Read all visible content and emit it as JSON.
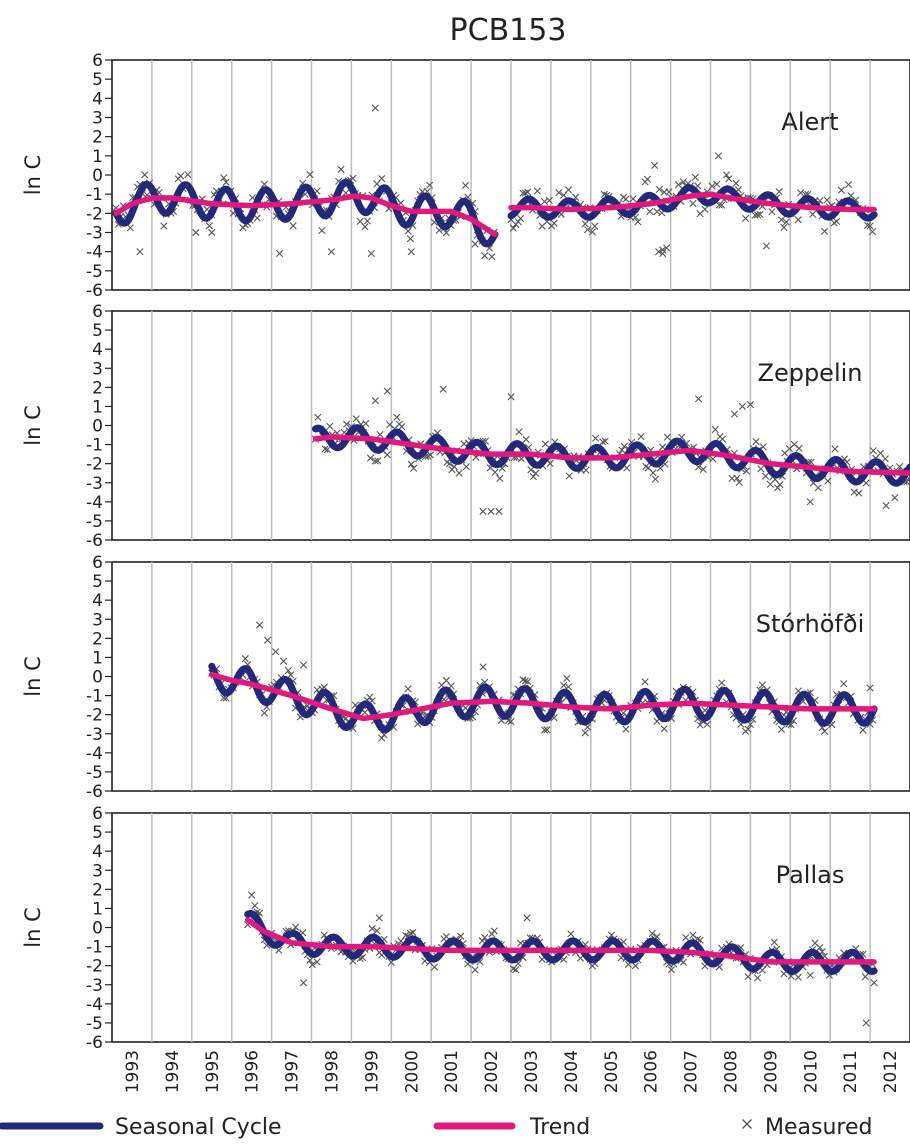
{
  "chart_data": {
    "type": "line",
    "title": "PCB153",
    "ylabel": "ln C",
    "ylim": [
      -6,
      6
    ],
    "yticks": [
      6,
      5,
      4,
      3,
      2,
      1,
      0,
      -1,
      -2,
      -3,
      -4,
      -5,
      -6
    ],
    "xlim": [
      1992.5,
      2012.5
    ],
    "xtick_labels": [
      "1993",
      "1994",
      "1995",
      "1996",
      "1997",
      "1998",
      "1999",
      "2000",
      "2001",
      "2002",
      "2003",
      "2004",
      "2005",
      "2006",
      "2007",
      "2008",
      "2009",
      "2010",
      "2011",
      "2012"
    ],
    "grid": "vertical",
    "legend": {
      "placement": "bottom",
      "entries": [
        {
          "label": "Seasonal Cycle",
          "color": "#22287a",
          "kind": "line"
        },
        {
          "label": "Trend",
          "color": "#e0197d",
          "kind": "line"
        },
        {
          "label": "Measured",
          "color": "#555555",
          "kind": "marker",
          "symbol": "×"
        }
      ]
    },
    "colors": {
      "seasonal": "#22287a",
      "trend": "#e0197d",
      "measured": "#555555",
      "grid": "#bdbdbd"
    },
    "panels": [
      {
        "station": "Alert",
        "segments": [
          {
            "trend": {
              "x": [
                1992.6,
                1993.0,
                1993.5,
                1994.0,
                1995.0,
                1996.0,
                1997.0,
                1998.0,
                1998.6,
                1999.0,
                1999.5,
                2000.0,
                2001.0,
                2001.5,
                2002.1
              ],
              "y": [
                -2.0,
                -1.5,
                -1.2,
                -1.2,
                -1.5,
                -1.6,
                -1.5,
                -1.3,
                -1.1,
                -1.2,
                -1.6,
                -1.9,
                -1.9,
                -2.3,
                -3.1
              ]
            },
            "seasonal": {
              "start": 1992.6,
              "end": 2002.1,
              "amp": 0.8,
              "period": 1.0,
              "phase": 0.9
            }
          },
          {
            "trend": {
              "x": [
                2002.5,
                2003.0,
                2004.0,
                2005.0,
                2006.0,
                2007.0,
                2007.5,
                2008.0,
                2009.0,
                2010.0,
                2011.0,
                2011.6
              ],
              "y": [
                -1.7,
                -1.7,
                -1.8,
                -1.7,
                -1.5,
                -1.1,
                -1.0,
                -1.2,
                -1.5,
                -1.7,
                -1.8,
                -1.8
              ]
            },
            "seasonal": {
              "start": 2002.5,
              "end": 2011.6,
              "amp": 0.45,
              "period": 1.0,
              "phase": 0.3
            }
          }
        ],
        "measured": {
          "spread": 0.9,
          "outliers": [
            [
              1999.1,
              3.5
            ],
            [
              1998.0,
              -4.0
            ],
            [
              1999.0,
              -4.1
            ],
            [
              2000.0,
              -4.0
            ],
            [
              2001.6,
              -3.6
            ],
            [
              2006.2,
              -4.0
            ],
            [
              2006.3,
              -3.9
            ],
            [
              2006.3,
              -4.1
            ],
            [
              2006.4,
              -3.8
            ],
            [
              2007.7,
              1.0
            ],
            [
              2006.1,
              0.5
            ],
            [
              2008.9,
              -3.7
            ],
            [
              1993.2,
              -4.0
            ],
            [
              1994.6,
              -3.0
            ],
            [
              1995.0,
              -3.0
            ],
            [
              1996.7,
              -4.1
            ]
          ]
        }
      },
      {
        "station": "Zeppelin",
        "segments": [
          {
            "trend": {
              "x": [
                1997.6,
                1998.0,
                1999.0,
                2000.0,
                2001.0,
                2002.0,
                2003.0,
                2004.0,
                2005.0,
                2006.0,
                2007.0,
                2008.0,
                2009.0,
                2010.0,
                2011.0,
                2012.5
              ],
              "y": [
                -0.7,
                -0.6,
                -0.7,
                -1.0,
                -1.3,
                -1.5,
                -1.5,
                -1.7,
                -1.7,
                -1.5,
                -1.3,
                -1.6,
                -2.0,
                -2.2,
                -2.4,
                -2.5
              ]
            },
            "seasonal": {
              "start": 1997.6,
              "end": 2012.5,
              "amp": 0.55,
              "period": 1.0,
              "phase": 0.6
            }
          }
        ],
        "measured": {
          "spread": 0.8,
          "outliers": [
            [
              1999.1,
              1.3
            ],
            [
              1999.4,
              1.8
            ],
            [
              2000.8,
              1.9
            ],
            [
              2002.5,
              1.5
            ],
            [
              2001.8,
              -4.5
            ],
            [
              2002.0,
              -4.5
            ],
            [
              2002.2,
              -4.5
            ],
            [
              2008.1,
              0.6
            ],
            [
              2008.3,
              1.0
            ],
            [
              2008.5,
              1.1
            ],
            [
              2010.0,
              -4.0
            ],
            [
              2011.9,
              -4.2
            ],
            [
              2007.2,
              1.4
            ]
          ]
        }
      },
      {
        "station": "Stórhöfði",
        "segments": [
          {
            "trend": {
              "x": [
                1995.0,
                1995.5,
                1996.0,
                1997.0,
                1998.0,
                1998.8,
                1999.5,
                2000.0,
                2001.0,
                2002.0,
                2003.0,
                2004.0,
                2005.0,
                2006.0,
                2007.0,
                2008.0,
                2009.0,
                2010.0,
                2011.0,
                2011.6
              ],
              "y": [
                0.1,
                -0.2,
                -0.4,
                -1.0,
                -1.7,
                -2.2,
                -2.0,
                -1.8,
                -1.4,
                -1.3,
                -1.4,
                -1.6,
                -1.7,
                -1.5,
                -1.4,
                -1.5,
                -1.6,
                -1.7,
                -1.7,
                -1.7
              ]
            },
            "seasonal": {
              "start": 1995.0,
              "end": 2011.6,
              "amp": 0.75,
              "period": 1.0,
              "phase": 0.4
            }
          }
        ],
        "measured": {
          "spread": 0.6,
          "outliers": [
            [
              1996.2,
              2.7
            ],
            [
              1996.4,
              1.9
            ],
            [
              1996.6,
              1.3
            ],
            [
              1996.8,
              0.8
            ],
            [
              1997.3,
              0.6
            ],
            [
              2001.8,
              0.5
            ],
            [
              2003.9,
              -0.1
            ],
            [
              2011.5,
              -0.6
            ]
          ]
        }
      },
      {
        "station": "Pallas",
        "segments": [
          {
            "trend": {
              "x": [
                1995.9,
                1996.3,
                1997.0,
                1998.0,
                1999.0,
                2000.0,
                2001.0,
                2002.0,
                2003.0,
                2004.0,
                2005.0,
                2006.0,
                2007.0,
                2008.0,
                2009.0,
                2010.0,
                2011.0,
                2011.6
              ],
              "y": [
                0.4,
                -0.2,
                -0.8,
                -1.0,
                -1.0,
                -1.1,
                -1.2,
                -1.2,
                -1.2,
                -1.2,
                -1.2,
                -1.2,
                -1.3,
                -1.5,
                -1.8,
                -1.8,
                -1.8,
                -1.8
              ]
            },
            "seasonal": {
              "start": 1995.9,
              "end": 2011.6,
              "amp": 0.5,
              "period": 1.0,
              "phase": 0.2
            }
          }
        ],
        "measured": {
          "spread": 0.6,
          "outliers": [
            [
              1996.0,
              1.7
            ],
            [
              1997.3,
              -2.9
            ],
            [
              1999.2,
              0.5
            ],
            [
              2002.9,
              0.5
            ],
            [
              2011.6,
              -2.9
            ],
            [
              2011.4,
              -5.0
            ],
            [
              2010.0,
              -2.5
            ]
          ]
        }
      }
    ]
  }
}
